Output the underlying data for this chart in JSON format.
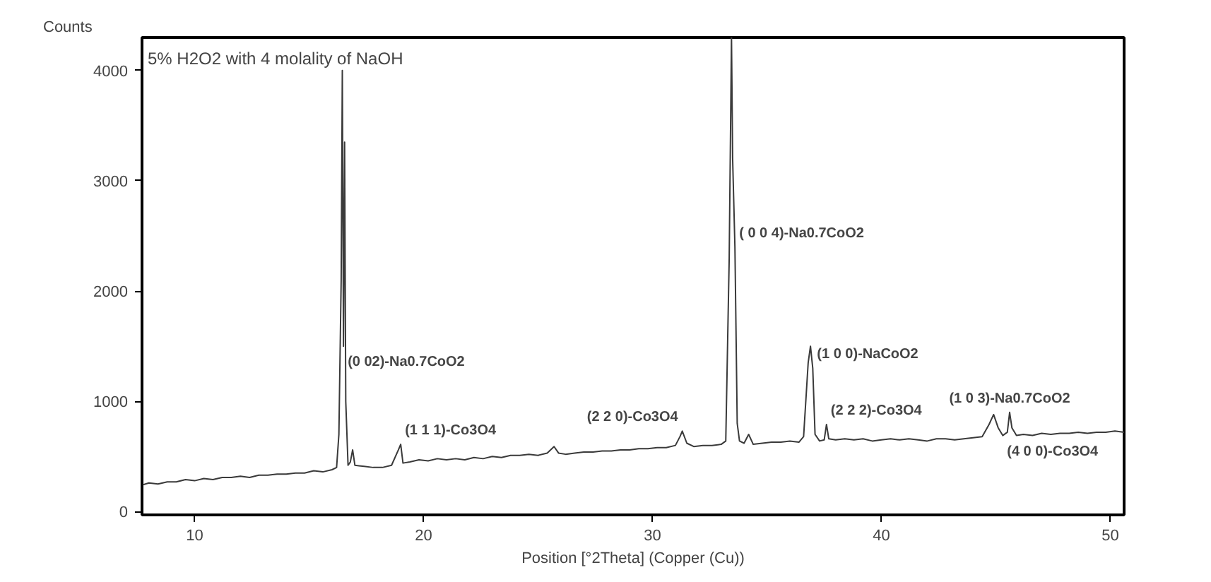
{
  "chart_data": {
    "type": "line",
    "title": "5% H2O2 with 4 molality of NaOH",
    "xlabel": "Position [°2Theta] (Copper (Cu))",
    "ylabel": "Counts",
    "xlim": [
      7.7,
      50.6
    ],
    "ylim": [
      -30,
      4300
    ],
    "xticks": [
      10,
      20,
      30,
      40,
      50
    ],
    "yticks": [
      0,
      1000,
      2000,
      3000,
      4000
    ],
    "grid": false,
    "marker": "none",
    "line_style": "solid",
    "series": [
      {
        "color": "#3a3a3a",
        "x": [
          7.7,
          8.0,
          8.4,
          8.8,
          9.2,
          9.6,
          10.0,
          10.4,
          10.8,
          11.2,
          11.6,
          12.0,
          12.4,
          12.8,
          13.2,
          13.6,
          14.0,
          14.4,
          14.8,
          15.2,
          15.6,
          16.0,
          16.2,
          16.3,
          16.4,
          16.45,
          16.5,
          16.55,
          16.6,
          16.7,
          16.8,
          16.9,
          17.0,
          17.4,
          17.8,
          18.2,
          18.6,
          18.9,
          19.0,
          19.1,
          19.4,
          19.8,
          20.2,
          20.6,
          21.0,
          21.4,
          21.8,
          22.2,
          22.6,
          23.0,
          23.4,
          23.8,
          24.2,
          24.6,
          25.0,
          25.4,
          25.7,
          25.9,
          26.2,
          26.6,
          27.0,
          27.4,
          27.8,
          28.2,
          28.6,
          29.0,
          29.4,
          29.8,
          30.2,
          30.6,
          31.0,
          31.2,
          31.3,
          31.5,
          31.8,
          32.2,
          32.6,
          33.0,
          33.2,
          33.35,
          33.45,
          33.5,
          33.6,
          33.7,
          33.8,
          34.0,
          34.2,
          34.4,
          34.8,
          35.2,
          35.6,
          36.0,
          36.4,
          36.6,
          36.8,
          36.9,
          37.0,
          37.1,
          37.3,
          37.5,
          37.6,
          37.7,
          38.0,
          38.4,
          38.8,
          39.2,
          39.6,
          40.0,
          40.4,
          40.8,
          41.2,
          41.6,
          42.0,
          42.4,
          42.8,
          43.2,
          43.6,
          44.0,
          44.4,
          44.7,
          44.9,
          45.1,
          45.3,
          45.5,
          45.6,
          45.7,
          45.9,
          46.2,
          46.6,
          47.0,
          47.4,
          47.8,
          48.2,
          48.6,
          49.0,
          49.4,
          49.8,
          50.2,
          50.6
        ],
        "values": [
          240,
          260,
          250,
          270,
          270,
          290,
          280,
          300,
          290,
          310,
          310,
          320,
          310,
          330,
          330,
          340,
          340,
          350,
          350,
          370,
          360,
          380,
          400,
          700,
          2100,
          4000,
          1500,
          3350,
          1000,
          420,
          450,
          560,
          420,
          410,
          400,
          400,
          420,
          560,
          610,
          440,
          450,
          470,
          460,
          480,
          470,
          480,
          470,
          490,
          480,
          500,
          490,
          510,
          510,
          520,
          510,
          530,
          590,
          530,
          520,
          530,
          540,
          540,
          550,
          550,
          560,
          560,
          570,
          570,
          580,
          580,
          600,
          680,
          730,
          620,
          590,
          600,
          600,
          610,
          640,
          2300,
          4300,
          3200,
          2400,
          800,
          640,
          620,
          700,
          610,
          620,
          630,
          630,
          640,
          630,
          680,
          1350,
          1500,
          1300,
          700,
          640,
          650,
          790,
          660,
          650,
          660,
          650,
          660,
          640,
          650,
          660,
          650,
          660,
          650,
          640,
          660,
          660,
          650,
          660,
          670,
          680,
          790,
          880,
          760,
          690,
          720,
          900,
          760,
          690,
          700,
          690,
          710,
          700,
          710,
          710,
          720,
          710,
          720,
          720,
          730,
          720
        ]
      }
    ],
    "annotations": [
      {
        "text": "(0 02)-Na0.7CoO2",
        "x": 16.5,
        "y": 1500
      },
      {
        "text": "(1 1 1)-Co3O4",
        "x": 19.0,
        "y": 610
      },
      {
        "text": "(2 2 0)-Co3O4",
        "x": 31.3,
        "y": 730
      },
      {
        "text": "( 0 0 4)-Na0.7CoO2",
        "x": 33.6,
        "y": 2400
      },
      {
        "text": "(1 0 0)-NaCoO2",
        "x": 37.0,
        "y": 1300
      },
      {
        "text": "(2 2 2)-Co3O4",
        "x": 37.6,
        "y": 790
      },
      {
        "text": "(1 0 3)-Na0.7CoO2",
        "x": 45.6,
        "y": 900
      },
      {
        "text": "(4 0 0)-Co3O4",
        "x": 45.3,
        "y": 690
      }
    ]
  }
}
